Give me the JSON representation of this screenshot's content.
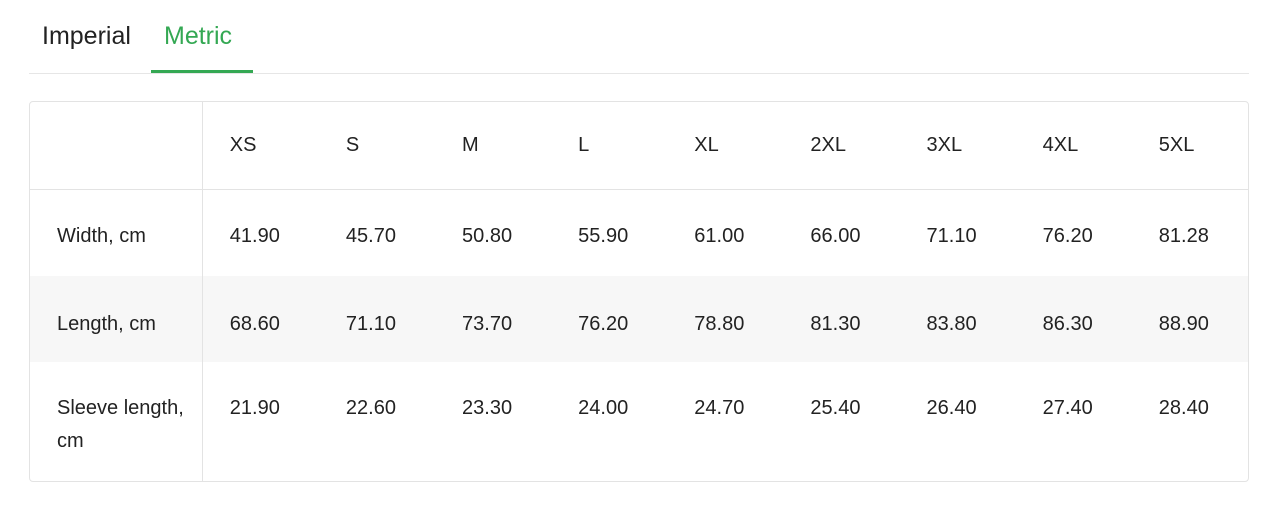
{
  "tabs": [
    {
      "label": "Imperial",
      "active": false
    },
    {
      "label": "Metric",
      "active": true
    }
  ],
  "accent_color": "#34a853",
  "table": {
    "columns": [
      "XS",
      "S",
      "M",
      "L",
      "XL",
      "2XL",
      "3XL",
      "4XL",
      "5XL"
    ],
    "rows": [
      {
        "label": "Width, cm",
        "values": [
          "41.90",
          "45.70",
          "50.80",
          "55.90",
          "61.00",
          "66.00",
          "71.10",
          "76.20",
          "81.28"
        ]
      },
      {
        "label": "Length, cm",
        "values": [
          "68.60",
          "71.10",
          "73.70",
          "76.20",
          "78.80",
          "81.30",
          "83.80",
          "86.30",
          "88.90"
        ]
      },
      {
        "label": "Sleeve length, cm",
        "values": [
          "21.90",
          "22.60",
          "23.30",
          "24.00",
          "24.70",
          "25.40",
          "26.40",
          "27.40",
          "28.40"
        ]
      }
    ]
  }
}
